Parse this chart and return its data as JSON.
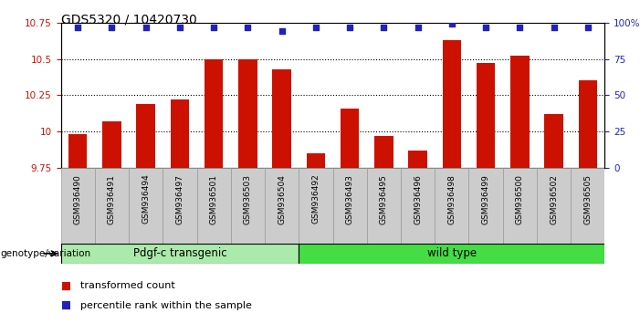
{
  "title": "GDS5320 / 10420730",
  "samples": [
    "GSM936490",
    "GSM936491",
    "GSM936494",
    "GSM936497",
    "GSM936501",
    "GSM936503",
    "GSM936504",
    "GSM936492",
    "GSM936493",
    "GSM936495",
    "GSM936496",
    "GSM936498",
    "GSM936499",
    "GSM936500",
    "GSM936502",
    "GSM936505"
  ],
  "bar_values": [
    9.98,
    10.07,
    10.19,
    10.22,
    10.5,
    10.5,
    10.43,
    9.85,
    10.16,
    9.97,
    9.87,
    10.63,
    10.47,
    10.52,
    10.12,
    10.35
  ],
  "percentile_values": [
    97,
    97,
    97,
    97,
    97,
    97,
    94,
    97,
    97,
    97,
    97,
    99,
    97,
    97,
    97,
    97
  ],
  "bar_color": "#cc1100",
  "dot_color": "#2222bb",
  "ylim_left": [
    9.75,
    10.75
  ],
  "ylim_right": [
    0,
    100
  ],
  "yticks_left": [
    9.75,
    10.0,
    10.25,
    10.5,
    10.75
  ],
  "ytick_labels_left": [
    "9.75",
    "10",
    "10.25",
    "10.5",
    "10.75"
  ],
  "yticks_right": [
    0,
    25,
    50,
    75,
    100
  ],
  "ytick_labels_right": [
    "0",
    "25",
    "50",
    "75",
    "100%"
  ],
  "group1_label": "Pdgf-c transgenic",
  "group2_label": "wild type",
  "group1_color": "#aaeaaa",
  "group2_color": "#44dd44",
  "group1_count": 7,
  "group2_count": 9,
  "genotype_label": "genotype/variation",
  "legend_bar_label": "transformed count",
  "legend_dot_label": "percentile rank within the sample",
  "grid_values": [
    10.0,
    10.25,
    10.5
  ],
  "bar_width": 0.55,
  "title_fontsize": 10,
  "tick_fontsize": 7.5,
  "sample_fontsize": 6.5,
  "label_fontsize": 8.5,
  "legend_fontsize": 8,
  "tick_grey_bg": "#cccccc"
}
